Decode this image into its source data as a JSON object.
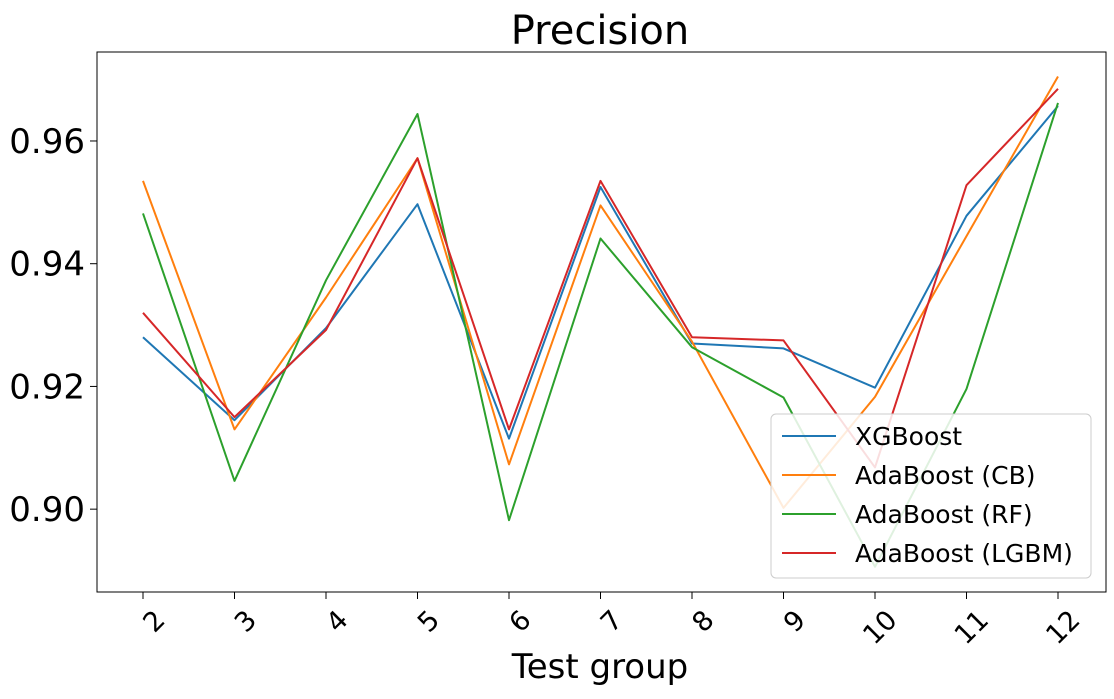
{
  "chart_data": {
    "type": "line",
    "title": "Precision",
    "xlabel": "Test group",
    "ylabel": "",
    "categories": [
      "2",
      "3",
      "4",
      "5",
      "6",
      "7",
      "8",
      "9",
      "10",
      "11",
      "12"
    ],
    "ylim": [
      0.8865,
      0.9745
    ],
    "yticks": [
      0.9,
      0.92,
      0.94,
      0.96
    ],
    "ytick_labels": [
      "0.90",
      "0.92",
      "0.94",
      "0.96"
    ],
    "grid": false,
    "legend_position": "lower-right",
    "series": [
      {
        "name": "XGBoost",
        "color": "#1f77b4",
        "values": [
          0.928,
          0.9145,
          0.9295,
          0.9497,
          0.9115,
          0.9525,
          0.927,
          0.9262,
          0.9198,
          0.9478,
          0.9657
        ]
      },
      {
        "name": "AdaBoost (CB)",
        "color": "#ff7f0e",
        "values": [
          0.9535,
          0.913,
          0.9345,
          0.9572,
          0.9073,
          0.9495,
          0.9273,
          0.9002,
          0.9183,
          0.9445,
          0.9705
        ]
      },
      {
        "name": "AdaBoost (RF)",
        "color": "#2ca02c",
        "values": [
          0.9482,
          0.9046,
          0.9373,
          0.9644,
          0.8982,
          0.9441,
          0.9264,
          0.9182,
          0.8906,
          0.9196,
          0.9662
        ]
      },
      {
        "name": "AdaBoost (LGBM)",
        "color": "#d62728",
        "values": [
          0.932,
          0.915,
          0.9292,
          0.9572,
          0.913,
          0.9535,
          0.928,
          0.9275,
          0.9068,
          0.9528,
          0.9685
        ]
      }
    ]
  }
}
